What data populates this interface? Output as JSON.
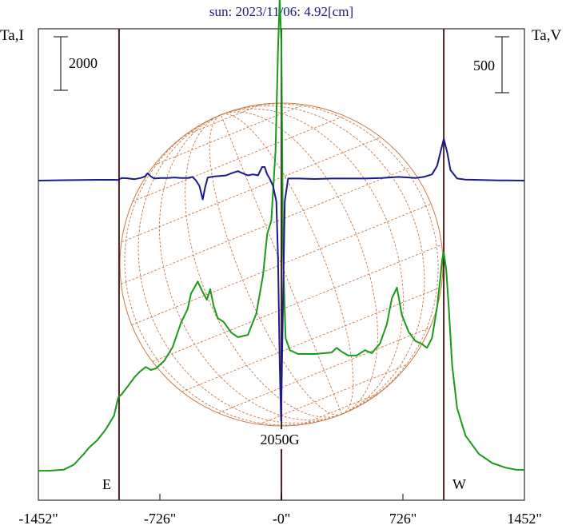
{
  "chart_data": {
    "type": "line",
    "title": "sun: 2023/11/06: 4.92[cm]",
    "left_axis_label": "Ta,I",
    "right_axis_label": "Ta,V",
    "x_tick_labels": [
      "-1452\"",
      "-726\"",
      "-0\"",
      "726\"",
      "1452\""
    ],
    "x_ticks": [
      -1452,
      -726,
      0,
      726,
      1452
    ],
    "xlim": [
      -1452,
      1452
    ],
    "disk_limb_positions": [
      -970,
      970
    ],
    "east_label": "E",
    "west_label": "W",
    "left_scale_bar_label": "2000",
    "right_scale_bar_label": "500",
    "annotation": "2050G",
    "annotation_x": 0,
    "grid": false,
    "series": [
      {
        "key": "stokes_I",
        "color": "#1a9a1a",
        "points": [
          [
            -1452,
            2.0
          ],
          [
            -1380,
            2.1
          ],
          [
            -1300,
            3.5
          ],
          [
            -1240,
            10
          ],
          [
            -1180,
            24
          ],
          [
            -1150,
            32
          ],
          [
            -1100,
            42
          ],
          [
            -1050,
            56
          ],
          [
            -1000,
            74
          ],
          [
            -975,
            98
          ],
          [
            -955,
            102
          ],
          [
            -920,
            112
          ],
          [
            -880,
            124
          ],
          [
            -845,
            132
          ],
          [
            -810,
            138
          ],
          [
            -780,
            134
          ],
          [
            -750,
            136
          ],
          [
            -700,
            146
          ],
          [
            -650,
            164
          ],
          [
            -600,
            196
          ],
          [
            -560,
            214
          ],
          [
            -540,
            234
          ],
          [
            -500,
            250
          ],
          [
            -470,
            236
          ],
          [
            -445,
            226
          ],
          [
            -425,
            240
          ],
          [
            -405,
            218
          ],
          [
            -380,
            202
          ],
          [
            -345,
            197
          ],
          [
            -300,
            183
          ],
          [
            -260,
            177
          ],
          [
            -200,
            180
          ],
          [
            -150,
            208
          ],
          [
            -110,
            258
          ],
          [
            -85,
            312
          ],
          [
            -60,
            330
          ],
          [
            -35,
            422
          ],
          [
            -20,
            555
          ],
          [
            -10,
            622
          ],
          [
            0,
            560
          ],
          [
            10,
            285
          ],
          [
            25,
            176
          ],
          [
            50,
            160
          ],
          [
            100,
            155
          ],
          [
            200,
            155
          ],
          [
            300,
            157
          ],
          [
            330,
            163
          ],
          [
            360,
            158
          ],
          [
            400,
            153
          ],
          [
            450,
            153
          ],
          [
            500,
            160
          ],
          [
            540,
            156
          ],
          [
            590,
            169
          ],
          [
            630,
            194
          ],
          [
            660,
            228
          ],
          [
            690,
            242
          ],
          [
            720,
            206
          ],
          [
            760,
            184
          ],
          [
            800,
            172
          ],
          [
            840,
            168
          ],
          [
            870,
            163
          ],
          [
            900,
            176
          ],
          [
            930,
            216
          ],
          [
            950,
            255
          ],
          [
            960,
            278
          ],
          [
            970,
            288
          ],
          [
            985,
            265
          ],
          [
            1000,
            215
          ],
          [
            1020,
            140
          ],
          [
            1050,
            84
          ],
          [
            1100,
            48
          ],
          [
            1180,
            24
          ],
          [
            1260,
            12
          ],
          [
            1340,
            6
          ],
          [
            1400,
            3.5
          ],
          [
            1452,
            3.0
          ]
        ]
      },
      {
        "key": "stokes_V",
        "color": "#1a1a8a",
        "points": [
          [
            -1452,
            0
          ],
          [
            -1300,
            0.8
          ],
          [
            -1100,
            1.5
          ],
          [
            -1000,
            1.6
          ],
          [
            -975,
            1.2
          ],
          [
            -955,
            5
          ],
          [
            -920,
            4.5
          ],
          [
            -880,
            2.6
          ],
          [
            -840,
            5
          ],
          [
            -815,
            8
          ],
          [
            -800,
            14
          ],
          [
            -780,
            8
          ],
          [
            -760,
            4
          ],
          [
            -720,
            5
          ],
          [
            -680,
            5
          ],
          [
            -640,
            6
          ],
          [
            -600,
            5
          ],
          [
            -560,
            5
          ],
          [
            -530,
            7
          ],
          [
            -510,
            0
          ],
          [
            -490,
            -10
          ],
          [
            -470,
            -36
          ],
          [
            -455,
            -12
          ],
          [
            -440,
            6
          ],
          [
            -400,
            8
          ],
          [
            -360,
            9
          ],
          [
            -330,
            10
          ],
          [
            -300,
            14
          ],
          [
            -260,
            18
          ],
          [
            -230,
            14
          ],
          [
            -200,
            10
          ],
          [
            -170,
            12
          ],
          [
            -140,
            10
          ],
          [
            -115,
            26
          ],
          [
            -100,
            26
          ],
          [
            -85,
            12
          ],
          [
            -70,
            4
          ],
          [
            -50,
            -10
          ],
          [
            -30,
            -40
          ],
          [
            -20,
            -150
          ],
          [
            -10,
            -350
          ],
          [
            -2,
            -460
          ],
          [
            8,
            -260
          ],
          [
            20,
            -40
          ],
          [
            40,
            4
          ],
          [
            100,
            4
          ],
          [
            200,
            3
          ],
          [
            300,
            4
          ],
          [
            400,
            4
          ],
          [
            500,
            4
          ],
          [
            600,
            5
          ],
          [
            700,
            7
          ],
          [
            760,
            6
          ],
          [
            800,
            5
          ],
          [
            850,
            7
          ],
          [
            900,
            12
          ],
          [
            930,
            28
          ],
          [
            955,
            60
          ],
          [
            970,
            80
          ],
          [
            990,
            55
          ],
          [
            1010,
            20
          ],
          [
            1050,
            4
          ],
          [
            1100,
            2
          ],
          [
            1200,
            1
          ],
          [
            1300,
            0.5
          ],
          [
            1452,
            0
          ]
        ]
      }
    ]
  }
}
